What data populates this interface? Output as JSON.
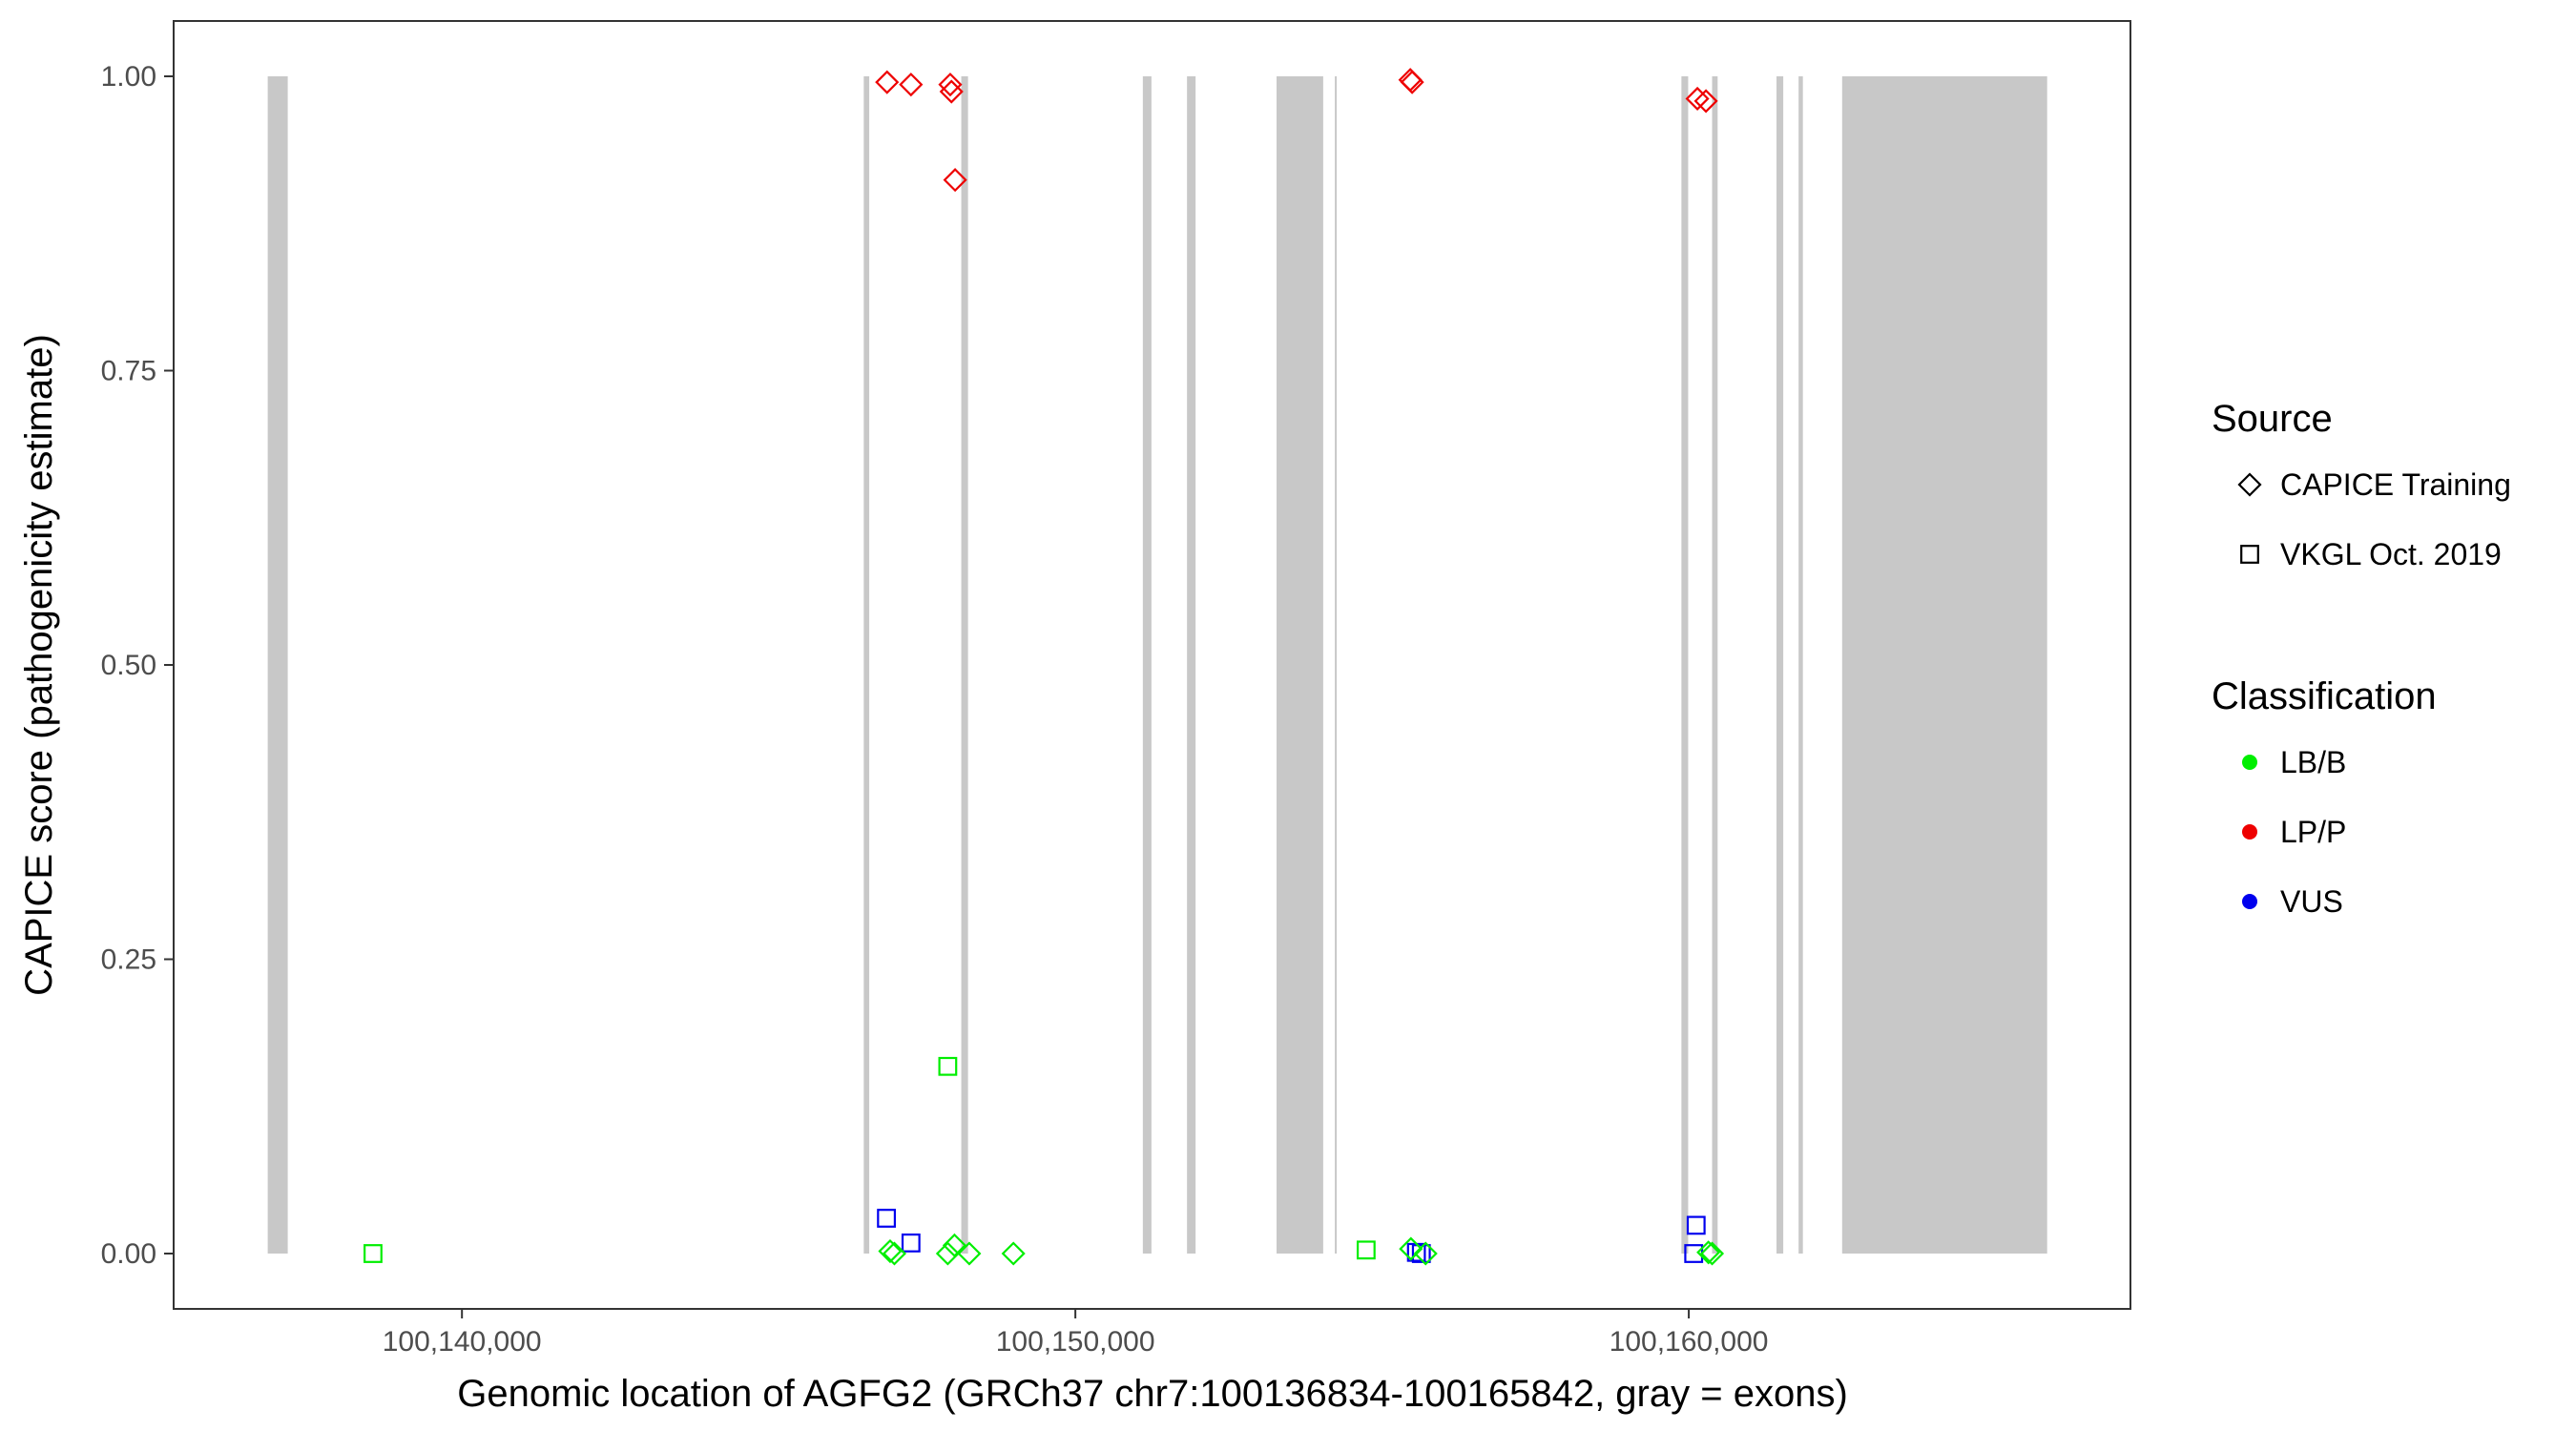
{
  "chart_data": {
    "type": "scatter",
    "title": "",
    "xlabel": "Genomic location of AGFG2 (GRCh37 chr7:100136834-100165842, gray = exons)",
    "ylabel": "CAPICE score (pathogenicity estimate)",
    "xlim": [
      100135300,
      100167200
    ],
    "ylim": [
      -0.047,
      1.047
    ],
    "x_ticks": [
      100140000,
      100150000,
      100160000
    ],
    "x_tick_labels": [
      "100,140,000",
      "100,150,000",
      "100,160,000"
    ],
    "y_ticks": [
      0,
      0.25,
      0.5,
      0.75,
      1
    ],
    "y_tick_labels": [
      "0.00",
      "0.25",
      "0.50",
      "0.75",
      "1.00"
    ],
    "grid": false,
    "exon_color": "#c8c8c8",
    "exons": [
      {
        "start": 100136834,
        "end": 100137160
      },
      {
        "start": 100146550,
        "end": 100146640
      },
      {
        "start": 100148140,
        "end": 100148250
      },
      {
        "start": 100151100,
        "end": 100151240
      },
      {
        "start": 100151820,
        "end": 100151960
      },
      {
        "start": 100153280,
        "end": 100154040
      },
      {
        "start": 100154230,
        "end": 100154260
      },
      {
        "start": 100159880,
        "end": 100159990
      },
      {
        "start": 100160380,
        "end": 100160470
      },
      {
        "start": 100161430,
        "end": 100161540
      },
      {
        "start": 100161790,
        "end": 100161860
      },
      {
        "start": 100162500,
        "end": 100165842
      }
    ],
    "legend": {
      "position": "right",
      "source_title": "Source",
      "source_items": [
        {
          "label": "CAPICE Training",
          "shape": "diamond"
        },
        {
          "label": "VKGL Oct. 2019",
          "shape": "square"
        }
      ],
      "classification_title": "Classification",
      "classification_items": [
        {
          "label": "LB/B",
          "color": "#00ee00"
        },
        {
          "label": "LP/P",
          "color": "#ee0000"
        },
        {
          "label": "VUS",
          "color": "#0000ee"
        }
      ]
    },
    "points": [
      {
        "x": 100146930,
        "y": 0.995,
        "source": "CAPICE Training",
        "class": "LP/P"
      },
      {
        "x": 100147320,
        "y": 0.993,
        "source": "CAPICE Training",
        "class": "LP/P"
      },
      {
        "x": 100147960,
        "y": 0.993,
        "source": "CAPICE Training",
        "class": "LP/P"
      },
      {
        "x": 100147980,
        "y": 0.987,
        "source": "CAPICE Training",
        "class": "LP/P"
      },
      {
        "x": 100148040,
        "y": 0.912,
        "source": "CAPICE Training",
        "class": "LP/P"
      },
      {
        "x": 100155460,
        "y": 0.997,
        "source": "CAPICE Training",
        "class": "LP/P"
      },
      {
        "x": 100155490,
        "y": 0.995,
        "source": "CAPICE Training",
        "class": "LP/P"
      },
      {
        "x": 100160140,
        "y": 0.981,
        "source": "CAPICE Training",
        "class": "LP/P"
      },
      {
        "x": 100160280,
        "y": 0.979,
        "source": "CAPICE Training",
        "class": "LP/P"
      },
      {
        "x": 100138550,
        "y": 0.0,
        "source": "VKGL Oct. 2019",
        "class": "LB/B"
      },
      {
        "x": 100147920,
        "y": 0.159,
        "source": "VKGL Oct. 2019",
        "class": "LB/B"
      },
      {
        "x": 100154740,
        "y": 0.003,
        "source": "VKGL Oct. 2019",
        "class": "LB/B"
      },
      {
        "x": 100146920,
        "y": 0.03,
        "source": "VKGL Oct. 2019",
        "class": "VUS"
      },
      {
        "x": 100147320,
        "y": 0.009,
        "source": "VKGL Oct. 2019",
        "class": "VUS"
      },
      {
        "x": 100155560,
        "y": 0.001,
        "source": "VKGL Oct. 2019",
        "class": "VUS"
      },
      {
        "x": 100155640,
        "y": 0.0,
        "source": "VKGL Oct. 2019",
        "class": "VUS"
      },
      {
        "x": 100160120,
        "y": 0.024,
        "source": "VKGL Oct. 2019",
        "class": "VUS"
      },
      {
        "x": 100160080,
        "y": 0.0,
        "source": "VKGL Oct. 2019",
        "class": "VUS"
      },
      {
        "x": 100146980,
        "y": 0.002,
        "source": "CAPICE Training",
        "class": "LB/B"
      },
      {
        "x": 100147050,
        "y": 0.0,
        "source": "CAPICE Training",
        "class": "LB/B"
      },
      {
        "x": 100147920,
        "y": 0.0,
        "source": "CAPICE Training",
        "class": "LB/B"
      },
      {
        "x": 100148030,
        "y": 0.007,
        "source": "CAPICE Training",
        "class": "LB/B"
      },
      {
        "x": 100148270,
        "y": 0.0,
        "source": "CAPICE Training",
        "class": "LB/B"
      },
      {
        "x": 100148990,
        "y": 0.0,
        "source": "CAPICE Training",
        "class": "LB/B"
      },
      {
        "x": 100155470,
        "y": 0.004,
        "source": "CAPICE Training",
        "class": "LB/B"
      },
      {
        "x": 100155710,
        "y": 0.0,
        "source": "CAPICE Training",
        "class": "LB/B"
      },
      {
        "x": 100160320,
        "y": 0.001,
        "source": "CAPICE Training",
        "class": "LB/B"
      },
      {
        "x": 100160380,
        "y": 0.0,
        "source": "CAPICE Training",
        "class": "LB/B"
      }
    ]
  }
}
